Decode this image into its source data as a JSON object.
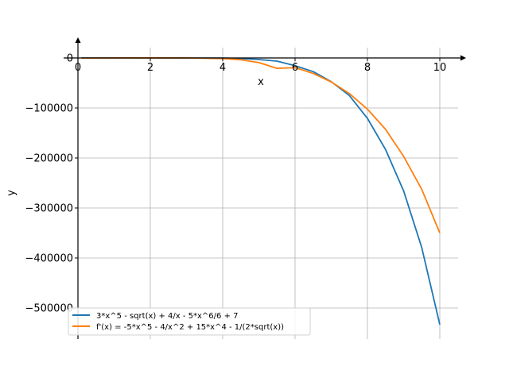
{
  "chart_data": {
    "type": "line",
    "title": "",
    "xlabel": "x",
    "ylabel": "y",
    "xlim": [
      0,
      10.6
    ],
    "ylim": [
      -560000,
      30000
    ],
    "grid": true,
    "legend_position": "lower-left",
    "x_ticks": [
      {
        "value": 0,
        "label": "0"
      },
      {
        "value": 2,
        "label": "2"
      },
      {
        "value": 4,
        "label": "4"
      },
      {
        "value": 6,
        "label": "6"
      },
      {
        "value": 8,
        "label": "8"
      },
      {
        "value": 10,
        "label": "10"
      }
    ],
    "y_ticks": [
      {
        "value": 0,
        "label": "0"
      },
      {
        "value": -100000,
        "label": "−100000"
      },
      {
        "value": -200000,
        "label": "−200000"
      },
      {
        "value": -300000,
        "label": "−300000"
      },
      {
        "value": -400000,
        "label": "−400000"
      },
      {
        "value": -500000,
        "label": "−500000"
      }
    ],
    "x": [
      0.1,
      1,
      2,
      3,
      4,
      4.5,
      5,
      5.5,
      6,
      6.5,
      7,
      7.5,
      8,
      8.5,
      9,
      9.5,
      10
    ],
    "series": [
      {
        "name": "3*x^5 - sqrt(x) + 4/x - 5*x^6/6 + 7",
        "color": "#1f77b4",
        "values": [
          46.7,
          12.2,
          14.6,
          -147.7,
          -338,
          -1060,
          -3140,
          -6300,
          -15558,
          -27300,
          -47558,
          -75100,
          -120840,
          -183000,
          -265802,
          -379000,
          -533291
        ]
      },
      {
        "name": "f'(x) = -5*x^5 - 4/x^2 + 15*x^4 - 1/(2*sqrt(x))",
        "color": "#ff7f0e",
        "values": [
          -401.6,
          5.5,
          78.6,
          0.2,
          -1280,
          -3630,
          -9375,
          -20760,
          -19440,
          -30900,
          -48020,
          -71200,
          -102400,
          -142600,
          -196830,
          -262600,
          -350000
        ]
      }
    ]
  }
}
